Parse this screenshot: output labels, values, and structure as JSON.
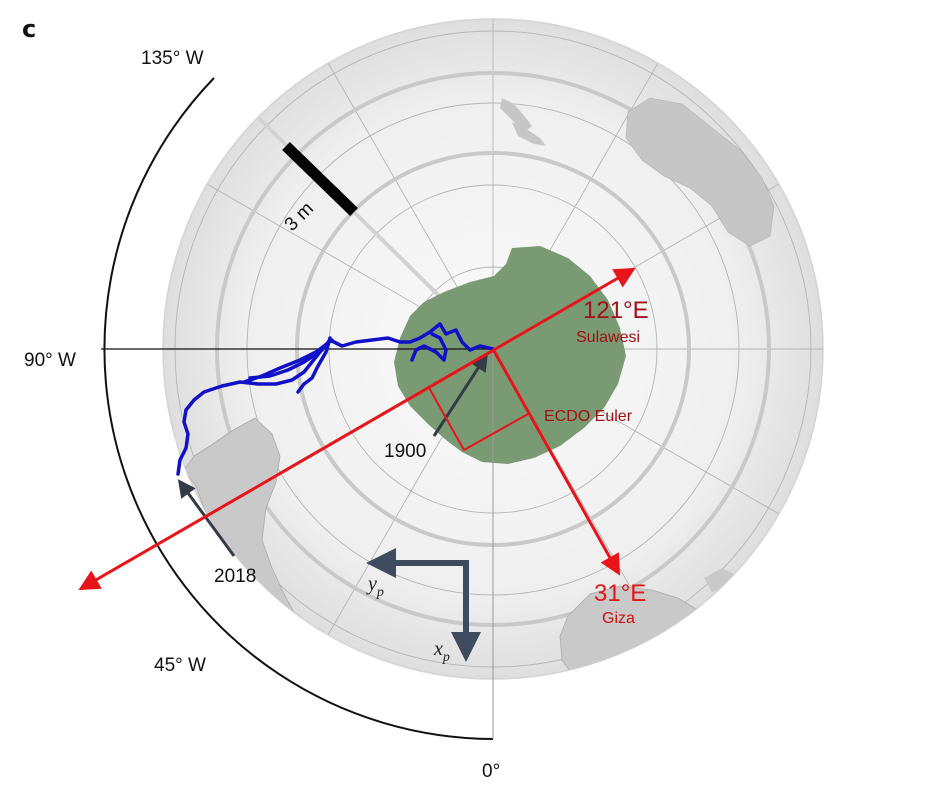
{
  "panel_label": "c",
  "longitude_labels": {
    "lon_135w": "135° W",
    "lon_90w": "90° W",
    "lon_45w": "45° W",
    "lon_0": "0°"
  },
  "scale_bar": {
    "label": "3 m"
  },
  "pole_path": {
    "start_label": "1900",
    "end_label": "2018",
    "color": "#1010c8"
  },
  "ecdo_axes": {
    "axis_121e": {
      "title": "121°E",
      "place": "Sulawesi"
    },
    "axis_31e": {
      "title": "31°E",
      "place": "Giza"
    },
    "euler_label": "ECDO Euler",
    "color": "#e0171b"
  },
  "reference_axes": {
    "x_symbol": "x",
    "x_sub": "p",
    "y_symbol": "y",
    "y_sub": "p",
    "color": "#3f4b5e"
  },
  "colors": {
    "antarctica": "#7a9a74",
    "land": "#c8c8c8",
    "globe": "#f0f0f0"
  }
}
